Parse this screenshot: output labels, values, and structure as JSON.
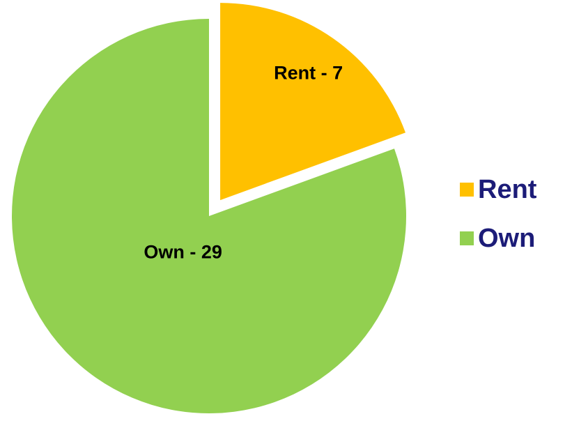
{
  "chart_data": {
    "type": "pie",
    "categories": [
      "Rent",
      "Own"
    ],
    "values": [
      7,
      29
    ],
    "value_labels": [
      "Rent - 7",
      "Own - 29"
    ],
    "colors": [
      "#ffc000",
      "#92d050"
    ],
    "explode": [
      true,
      false
    ],
    "legend": "right"
  }
}
